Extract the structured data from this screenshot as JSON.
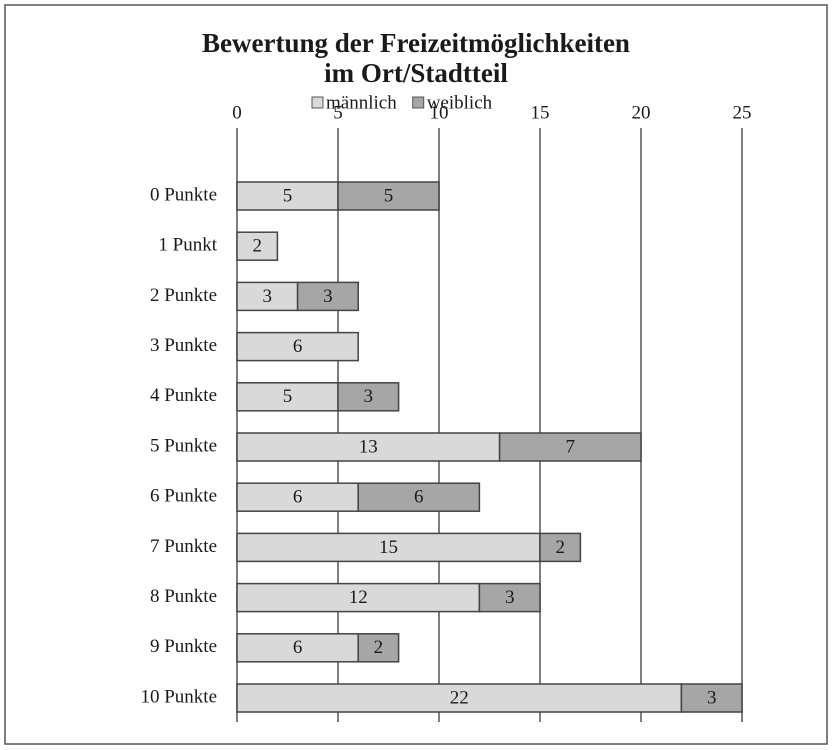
{
  "chart_data": {
    "type": "stacked-bar-horizontal",
    "title": [
      "Bewertung der Freizeitmöglichkeiten",
      "im Ort/Stadtteil"
    ],
    "categories": [
      "0 Punkte",
      "1 Punkt",
      "2 Punkte",
      "3 Punkte",
      "4 Punkte",
      "5 Punkte",
      "6 Punkte",
      "7 Punkte",
      "8 Punkte",
      "9 Punkte",
      "10 Punkte"
    ],
    "series": [
      {
        "name": "männlich",
        "color": "#d9d9d9",
        "values": [
          5,
          2,
          3,
          6,
          5,
          13,
          6,
          15,
          12,
          6,
          22
        ]
      },
      {
        "name": "weiblich",
        "color": "#a6a6a6",
        "values": [
          5,
          null,
          3,
          null,
          3,
          7,
          6,
          2,
          3,
          2,
          3
        ]
      }
    ],
    "xlim": [
      0,
      25
    ],
    "xticks": [
      0,
      5,
      10,
      15,
      20,
      25
    ],
    "grid": true,
    "legend": "top"
  }
}
